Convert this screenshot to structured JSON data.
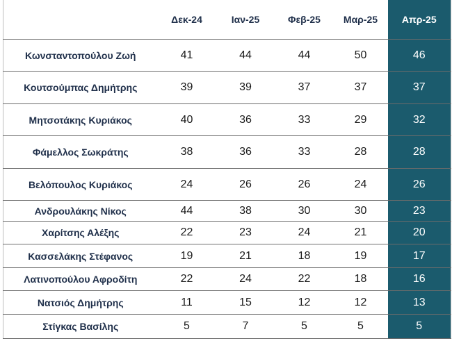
{
  "table": {
    "columns": [
      "Δεκ-24",
      "Ιαν-25",
      "Φεβ-25",
      "Μαρ-25",
      "Απρ-25"
    ],
    "rows": [
      {
        "name": "Κωνσταντοπούλου Ζωή",
        "values": [
          41,
          44,
          44,
          50,
          46
        ]
      },
      {
        "name": "Κουτσούμπας Δημήτρης",
        "values": [
          39,
          39,
          37,
          37,
          37
        ]
      },
      {
        "name": "Μητσοτάκης Κυριάκος",
        "values": [
          40,
          36,
          33,
          29,
          32
        ]
      },
      {
        "name": "Φάμελλος Σωκράτης",
        "values": [
          38,
          36,
          33,
          28,
          28
        ]
      },
      {
        "name": "Βελόπουλος Κυριάκος",
        "values": [
          24,
          26,
          26,
          24,
          26
        ]
      },
      {
        "name": "Ανδρουλάκης Νίκος",
        "values": [
          44,
          38,
          30,
          30,
          23
        ]
      },
      {
        "name": "Χαρίτσης Αλέξης",
        "values": [
          22,
          23,
          24,
          21,
          20
        ]
      },
      {
        "name": "Κασσελάκης Στέφανος",
        "values": [
          19,
          21,
          18,
          19,
          17
        ]
      },
      {
        "name": "Λατινοπούλου Αφροδίτη",
        "values": [
          22,
          24,
          22,
          18,
          16
        ]
      },
      {
        "name": "Νατσιός Δημήτρης",
        "values": [
          11,
          15,
          12,
          12,
          13
        ]
      },
      {
        "name": "Στίγκας Βασίλης",
        "values": [
          5,
          7,
          5,
          5,
          5
        ]
      }
    ]
  }
}
